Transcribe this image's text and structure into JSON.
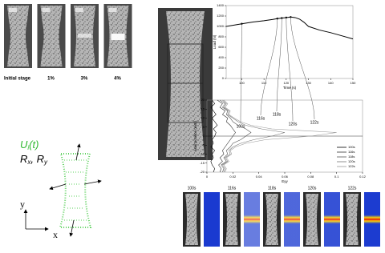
{
  "labels": {
    "stages": [
      "Initial stage",
      "1%",
      "3%",
      "4%"
    ],
    "u": {
      "symbol": "U",
      "subscript": "i",
      "argument": "(t)"
    },
    "r": {
      "x": {
        "symbol": "R",
        "subscript": "x"
      },
      "separator": ",",
      "y": {
        "symbol": "R",
        "subscript": "y"
      }
    },
    "axis_x": "x",
    "axis_y": "y"
  },
  "chart_data": [
    {
      "type": "line",
      "x_label": "Time (s)",
      "y_label": "Load (N)",
      "x": [
        93,
        100,
        105,
        110,
        114,
        116,
        118,
        120,
        122,
        124,
        126,
        128,
        130,
        135,
        140,
        145,
        150
      ],
      "series": [
        {
          "name": "Load",
          "color": "#000000",
          "values": [
            1000,
            1050,
            1085,
            1110,
            1135,
            1150,
            1160,
            1170,
            1180,
            1170,
            1140,
            1080,
            1000,
            930,
            880,
            820,
            760
          ]
        }
      ],
      "markers_at": [
        100,
        116,
        118,
        120,
        122
      ],
      "xlim": [
        93,
        150
      ],
      "xticks": [
        100,
        110,
        120,
        130,
        140,
        150
      ],
      "ylim": [
        0,
        1400
      ],
      "yticks": [
        0,
        200,
        400,
        600,
        800,
        1000,
        1200,
        1400
      ]
    },
    {
      "type": "line",
      "x_label": "Eyy",
      "y_label": "axial position (mm)",
      "y": [
        20,
        18,
        16,
        14,
        12,
        10,
        8,
        6,
        4,
        2,
        0,
        -2,
        -4,
        -6,
        -8,
        -10,
        -12,
        -14,
        -16,
        -18,
        -20
      ],
      "series": [
        {
          "name": "100s",
          "color": "#000000",
          "values": [
            0.004,
            0.006,
            0.003,
            0.005,
            0.007,
            0.004,
            0.006,
            0.008,
            0.005,
            0.007,
            0.006,
            0.004,
            0.005,
            0.003,
            0.006,
            0.004,
            0.005,
            0.003,
            0.004,
            0.006,
            0.005
          ]
        },
        {
          "name": "116s",
          "color": "#333333",
          "values": [
            0.008,
            0.012,
            0.01,
            0.014,
            0.012,
            0.016,
            0.015,
            0.018,
            0.02,
            0.022,
            0.02,
            0.018,
            0.016,
            0.014,
            0.012,
            0.013,
            0.01,
            0.012,
            0.009,
            0.011,
            0.01
          ]
        },
        {
          "name": "118s",
          "color": "#555555",
          "values": [
            0.01,
            0.014,
            0.012,
            0.016,
            0.015,
            0.018,
            0.02,
            0.024,
            0.03,
            0.034,
            0.03,
            0.026,
            0.02,
            0.018,
            0.015,
            0.016,
            0.013,
            0.015,
            0.011,
            0.013,
            0.012
          ]
        },
        {
          "name": "120s",
          "color": "#777777",
          "values": [
            0.012,
            0.015,
            0.013,
            0.017,
            0.016,
            0.02,
            0.024,
            0.03,
            0.042,
            0.06,
            0.05,
            0.036,
            0.026,
            0.02,
            0.017,
            0.018,
            0.014,
            0.016,
            0.012,
            0.014,
            0.013
          ]
        },
        {
          "name": "122s",
          "color": "#999999",
          "values": [
            0.013,
            0.016,
            0.014,
            0.018,
            0.017,
            0.021,
            0.026,
            0.034,
            0.05,
            0.1,
            0.08,
            0.045,
            0.03,
            0.022,
            0.018,
            0.019,
            0.015,
            0.017,
            0.013,
            0.015,
            0.014
          ]
        }
      ],
      "xlim": [
        0,
        0.12
      ],
      "xticks": [
        0,
        0.02,
        0.04,
        0.06,
        0.08,
        0.1,
        0.12
      ],
      "ylim": [
        -20,
        20
      ],
      "yticks": [
        20,
        15,
        10,
        5,
        0,
        -5,
        -10,
        -15,
        -20
      ]
    }
  ]
}
